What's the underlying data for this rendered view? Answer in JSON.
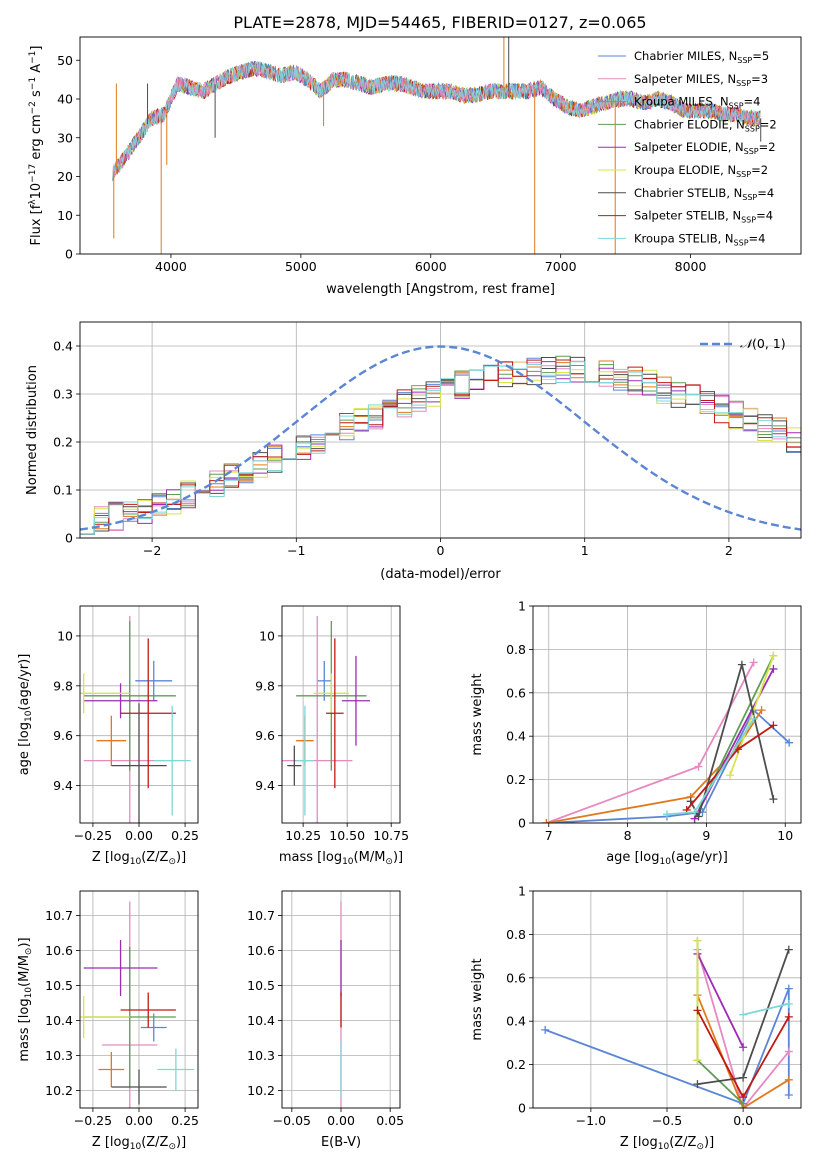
{
  "figure": {
    "title": "PLATE=2878, MJD=54465, FIBERID=0127, z=0.065"
  },
  "colors": {
    "Chabrier MILES": "#5b86d6",
    "Salpeter MILES": "#e68ac1",
    "Kroupa MILES": "#e07a1e",
    "Chabrier ELODIE": "#5f9e56",
    "Salpeter ELODIE": "#9d2bb5",
    "Kroupa ELODIE": "#d9e44a",
    "Chabrier STELIB": "#4d4d4d",
    "Salpeter STELIB": "#c01a12",
    "Kroupa STELIB": "#7fd7d9",
    "gaussian": "#5b86d6",
    "grid": "#b0b0b0"
  },
  "chart_data": [
    {
      "id": "spectrum",
      "type": "line",
      "xlabel": "wavelength [Angstrom, rest frame]",
      "ylabel_parts": [
        "Flux [f",
        "λ",
        "10",
        "−17",
        " erg cm",
        "−2",
        " s",
        "−1",
        " A",
        "−1",
        "]"
      ],
      "xlim": [
        3300,
        8850
      ],
      "ylim": [
        0,
        56
      ],
      "xticks": [
        4000,
        5000,
        6000,
        7000,
        8000
      ],
      "yticks": [
        0,
        10,
        20,
        30,
        40,
        50
      ],
      "grid": false,
      "legend_position": "upper right",
      "legend": [
        {
          "model": "Chabrier MILES",
          "label": "Chabrier MILES, N",
          "sub": "SSP",
          "suffix": "=5"
        },
        {
          "model": "Salpeter MILES",
          "label": "Salpeter MILES, N",
          "sub": "SSP",
          "suffix": "=3"
        },
        {
          "model": "Kroupa MILES",
          "label": "Kroupa MILES, N",
          "sub": "SSP",
          "suffix": "=4"
        },
        {
          "model": "Chabrier ELODIE",
          "label": "Chabrier ELODIE, N",
          "sub": "SSP",
          "suffix": "=2"
        },
        {
          "model": "Salpeter ELODIE",
          "label": "Salpeter ELODIE, N",
          "sub": "SSP",
          "suffix": "=2"
        },
        {
          "model": "Kroupa ELODIE",
          "label": "Kroupa ELODIE, N",
          "sub": "SSP",
          "suffix": "=2"
        },
        {
          "model": "Chabrier STELIB",
          "label": "Chabrier STELIB, N",
          "sub": "SSP",
          "suffix": "=4"
        },
        {
          "model": "Salpeter STELIB",
          "label": "Salpeter STELIB, N",
          "sub": "SSP",
          "suffix": "=4"
        },
        {
          "model": "Kroupa STELIB",
          "label": "Kroupa STELIB, N",
          "sub": "SSP",
          "suffix": "=4"
        }
      ],
      "continuum": {
        "x": [
          3550,
          3650,
          3750,
          3850,
          3950,
          4050,
          4150,
          4250,
          4350,
          4450,
          4550,
          4650,
          4750,
          4850,
          4950,
          5050,
          5150,
          5250,
          5350,
          5450,
          5550,
          5650,
          5750,
          5850,
          5950,
          6050,
          6150,
          6250,
          6350,
          6450,
          6550,
          6650,
          6750,
          6850,
          6950,
          7050,
          7150,
          7250,
          7350,
          7450,
          7550,
          7650,
          7750,
          7850,
          7950,
          8050,
          8150,
          8250,
          8350,
          8450,
          8500
        ],
        "y": [
          21,
          25,
          30,
          35,
          36,
          44,
          43,
          42,
          44,
          46,
          47,
          48,
          47,
          46,
          47,
          45,
          42,
          45,
          45,
          44,
          43,
          44,
          44,
          43,
          42,
          42,
          42,
          41,
          41,
          42,
          42,
          42,
          42,
          43,
          40,
          38,
          37,
          38,
          39,
          40,
          40,
          39,
          40,
          39,
          37,
          37,
          37,
          36,
          36,
          35,
          35
        ]
      },
      "features": [
        {
          "x": 3560,
          "y": 4
        },
        {
          "x": 3580,
          "y": 44
        },
        {
          "x": 3820,
          "y": 44
        },
        {
          "x": 3925,
          "y": 0
        },
        {
          "x": 3968,
          "y": 23
        },
        {
          "x": 4340,
          "y": 30
        },
        {
          "x": 5175,
          "y": 33
        },
        {
          "x": 6563,
          "y": 56
        },
        {
          "x": 6600,
          "y": 56
        },
        {
          "x": 6800,
          "y": 0
        },
        {
          "x": 7420,
          "y": 0
        },
        {
          "x": 8540,
          "y": 29
        }
      ]
    },
    {
      "id": "residuals",
      "type": "step",
      "xlabel": "(data-model)/error",
      "ylabel": "Normed distribution",
      "xlim": [
        -2.5,
        2.5
      ],
      "ylim": [
        0,
        0.45
      ],
      "xticks": [
        -2,
        -1,
        0,
        1,
        2
      ],
      "yticks": [
        0.0,
        0.1,
        0.2,
        0.3,
        0.4
      ],
      "grid": true,
      "legend_position": "upper right",
      "gaussian": {
        "label_pre": "𝒩",
        "label_post": "(0, 1)",
        "mean": 0,
        "sigma": 1,
        "style": "dashed"
      },
      "bin_width": 0.1,
      "bin_start": -2.5,
      "base_profile": [
        0.035,
        0.04,
        0.045,
        0.05,
        0.06,
        0.068,
        0.078,
        0.09,
        0.1,
        0.115,
        0.125,
        0.14,
        0.15,
        0.165,
        0.175,
        0.19,
        0.2,
        0.215,
        0.23,
        0.24,
        0.25,
        0.265,
        0.28,
        0.29,
        0.3,
        0.31,
        0.32,
        0.325,
        0.33,
        0.34,
        0.345,
        0.345,
        0.35,
        0.35,
        0.348,
        0.345,
        0.342,
        0.335,
        0.328,
        0.32,
        0.31,
        0.3,
        0.29,
        0.28,
        0.268,
        0.255,
        0.245,
        0.232,
        0.22,
        0.205,
        0.195,
        0.18,
        0.168,
        0.155,
        0.14,
        0.128,
        0.115,
        0.103,
        0.093,
        0.083,
        0.075,
        0.068,
        0.062,
        0.056,
        0.05,
        0.046,
        0.042,
        0.04,
        0.038,
        0.036,
        0.035,
        0.035,
        0.034,
        0.033,
        0.033,
        0.032,
        0.032,
        0.031,
        0.031,
        0.03
      ]
    },
    {
      "id": "age-vs-Z",
      "type": "errorbar",
      "xlabel_parts": [
        "Z [log",
        "10",
        "(Z/Z",
        "⊙",
        ")]"
      ],
      "ylabel_parts": [
        "age  [log",
        "10",
        "(age/yr)]"
      ],
      "xlim": [
        -0.32,
        0.32
      ],
      "ylim": [
        9.25,
        10.12
      ],
      "xticks": [
        -0.25,
        0.0,
        0.25
      ],
      "xticklabels": [
        "−0.25",
        "0.00",
        "0.25"
      ],
      "yticks": [
        9.4,
        9.6,
        9.8,
        10.0
      ],
      "grid": true,
      "points": [
        {
          "model": "Chabrier MILES",
          "x": 0.08,
          "y": 9.82,
          "xerr": 0.1,
          "yerr": 0.08
        },
        {
          "model": "Salpeter MILES",
          "x": -0.05,
          "y": 9.5,
          "xerr": 0.25,
          "yerr": 0.58
        },
        {
          "model": "Kroupa MILES",
          "x": -0.15,
          "y": 9.58,
          "xerr": 0.08,
          "yerr": 0.1
        },
        {
          "model": "Chabrier ELODIE",
          "x": -0.05,
          "y": 9.76,
          "xerr": 0.25,
          "yerr": 0.3
        },
        {
          "model": "Salpeter ELODIE",
          "x": -0.1,
          "y": 9.74,
          "xerr": 0.2,
          "yerr": 0.07
        },
        {
          "model": "Kroupa ELODIE",
          "x": -0.3,
          "y": 9.77,
          "xerr": 0.25,
          "yerr": 0.08
        },
        {
          "model": "Chabrier STELIB",
          "x": 0.0,
          "y": 9.48,
          "xerr": 0.15,
          "yerr": 0.25
        },
        {
          "model": "Salpeter STELIB",
          "x": 0.05,
          "y": 9.69,
          "xerr": 0.15,
          "yerr": 0.3
        },
        {
          "model": "Kroupa STELIB",
          "x": 0.18,
          "y": 9.5,
          "xerr": 0.1,
          "yerr": 0.22
        }
      ]
    },
    {
      "id": "age-vs-mass",
      "type": "errorbar",
      "xlabel_parts": [
        "mass [log",
        "10",
        "(M/M",
        "⊙",
        ")]"
      ],
      "ylabel": "",
      "xlim": [
        10.13,
        10.8
      ],
      "ylim": [
        9.25,
        10.12
      ],
      "xticks": [
        10.25,
        10.5,
        10.75
      ],
      "xticklabels": [
        "10.25",
        "10.50",
        "10.75"
      ],
      "yticks": [
        9.4,
        9.6,
        9.8,
        10.0
      ],
      "grid": true,
      "points": [
        {
          "model": "Chabrier MILES",
          "x": 10.37,
          "y": 9.82,
          "xerr": 0.04,
          "yerr": 0.08
        },
        {
          "model": "Salpeter MILES",
          "x": 10.33,
          "y": 9.5,
          "xerr": 0.2,
          "yerr": 0.58
        },
        {
          "model": "Kroupa MILES",
          "x": 10.26,
          "y": 9.58,
          "xerr": 0.05,
          "yerr": 0.1
        },
        {
          "model": "Chabrier ELODIE",
          "x": 10.41,
          "y": 9.76,
          "xerr": 0.2,
          "yerr": 0.3
        },
        {
          "model": "Salpeter ELODIE",
          "x": 10.55,
          "y": 9.74,
          "xerr": 0.08,
          "yerr": 0.18
        },
        {
          "model": "Kroupa ELODIE",
          "x": 10.41,
          "y": 9.77,
          "xerr": 0.1,
          "yerr": 0.08
        },
        {
          "model": "Chabrier STELIB",
          "x": 10.2,
          "y": 9.48,
          "xerr": 0.04,
          "yerr": 0.08
        },
        {
          "model": "Salpeter STELIB",
          "x": 10.43,
          "y": 9.69,
          "xerr": 0.05,
          "yerr": 0.3
        },
        {
          "model": "Kroupa STELIB",
          "x": 10.26,
          "y": 9.5,
          "xerr": 0.05,
          "yerr": 0.22
        }
      ]
    },
    {
      "id": "weight-vs-age",
      "type": "line",
      "xlabel_parts": [
        "age  [log",
        "10",
        "(age/yr)]"
      ],
      "ylabel": "mass weight",
      "xlim": [
        6.8,
        10.2
      ],
      "ylim": [
        0,
        1
      ],
      "xticks": [
        7,
        8,
        9,
        10
      ],
      "yticks": [
        0.0,
        0.2,
        0.4,
        0.6,
        0.8,
        1.0
      ],
      "grid": true,
      "series": [
        {
          "model": "Chabrier MILES",
          "x": [
            6.97,
            8.5,
            8.95,
            9.6,
            10.05
          ],
          "y": [
            0.0,
            0.03,
            0.05,
            0.52,
            0.37
          ]
        },
        {
          "model": "Salpeter MILES",
          "x": [
            6.97,
            8.9,
            9.6
          ],
          "y": [
            0.0,
            0.26,
            0.74
          ]
        },
        {
          "model": "Kroupa MILES",
          "x": [
            6.97,
            8.8,
            9.4,
            9.7
          ],
          "y": [
            0.0,
            0.12,
            0.35,
            0.52
          ]
        },
        {
          "model": "Chabrier ELODIE",
          "x": [
            8.85,
            9.85
          ],
          "y": [
            0.02,
            0.77
          ]
        },
        {
          "model": "Salpeter ELODIE",
          "x": [
            8.85,
            9.85
          ],
          "y": [
            0.02,
            0.71
          ]
        },
        {
          "model": "Kroupa ELODIE",
          "x": [
            9.3,
            9.85
          ],
          "y": [
            0.22,
            0.77
          ]
        },
        {
          "model": "Chabrier STELIB",
          "x": [
            8.8,
            8.9,
            9.45,
            9.85
          ],
          "y": [
            0.1,
            0.03,
            0.73,
            0.11
          ]
        },
        {
          "model": "Salpeter STELIB",
          "x": [
            8.75,
            9.4,
            9.85
          ],
          "y": [
            0.06,
            0.34,
            0.45
          ]
        },
        {
          "model": "Kroupa STELIB",
          "x": [
            8.5,
            8.85,
            9.6
          ],
          "y": [
            0.04,
            0.05,
            0.48
          ]
        }
      ]
    },
    {
      "id": "mass-vs-Z",
      "type": "errorbar",
      "xlabel_parts": [
        "Z [log",
        "10",
        "(Z/Z",
        "⊙",
        ")]"
      ],
      "ylabel_parts": [
        "mass [log",
        "10",
        "(M/M",
        "⊙",
        ")]"
      ],
      "xlim": [
        -0.32,
        0.32
      ],
      "ylim": [
        10.15,
        10.77
      ],
      "xticks": [
        -0.25,
        0.0,
        0.25
      ],
      "xticklabels": [
        "−0.25",
        "0.00",
        "0.25"
      ],
      "yticks": [
        10.2,
        10.3,
        10.4,
        10.5,
        10.6,
        10.7
      ],
      "grid": true,
      "points": [
        {
          "model": "Chabrier MILES",
          "x": 0.08,
          "y": 10.38,
          "xerr": 0.07,
          "yerr": 0.04
        },
        {
          "model": "Salpeter MILES",
          "x": -0.05,
          "y": 10.33,
          "xerr": 0.15,
          "yerr": 0.41
        },
        {
          "model": "Kroupa MILES",
          "x": -0.15,
          "y": 10.26,
          "xerr": 0.07,
          "yerr": 0.05
        },
        {
          "model": "Chabrier ELODIE",
          "x": -0.05,
          "y": 10.41,
          "xerr": 0.25,
          "yerr": 0.2
        },
        {
          "model": "Salpeter ELODIE",
          "x": -0.1,
          "y": 10.55,
          "xerr": 0.2,
          "yerr": 0.08
        },
        {
          "model": "Kroupa ELODIE",
          "x": -0.3,
          "y": 10.41,
          "xerr": 0.25,
          "yerr": 0.06
        },
        {
          "model": "Chabrier STELIB",
          "x": 0.0,
          "y": 10.21,
          "xerr": 0.15,
          "yerr": 0.05
        },
        {
          "model": "Salpeter STELIB",
          "x": 0.05,
          "y": 10.43,
          "xerr": 0.15,
          "yerr": 0.05
        },
        {
          "model": "Kroupa STELIB",
          "x": 0.2,
          "y": 10.26,
          "xerr": 0.1,
          "yerr": 0.06
        }
      ]
    },
    {
      "id": "mass-vs-ebv",
      "type": "errorbar",
      "xlabel": "E(B-V)",
      "ylabel": "",
      "xlim": [
        -0.06,
        0.06
      ],
      "ylim": [
        10.15,
        10.77
      ],
      "xticks": [
        -0.05,
        0.0,
        0.05
      ],
      "xticklabels": [
        "−0.05",
        "0.00",
        "0.05"
      ],
      "yticks": [
        10.2,
        10.3,
        10.4,
        10.5,
        10.6,
        10.7
      ],
      "grid": true,
      "points": [
        {
          "model": "Salpeter MILES",
          "x": 0.0,
          "y": 10.33,
          "xerr": 0,
          "yerr": 0.41
        },
        {
          "model": "Salpeter ELODIE",
          "x": 0.0,
          "y": 10.55,
          "xerr": 0,
          "yerr": 0.08
        },
        {
          "model": "Salpeter STELIB",
          "x": 0.0,
          "y": 10.43,
          "xerr": 0,
          "yerr": 0.05
        },
        {
          "model": "Kroupa STELIB",
          "x": 0.0,
          "y": 10.26,
          "xerr": 0,
          "yerr": 0.08
        }
      ]
    },
    {
      "id": "weight-vs-Z",
      "type": "line",
      "xlabel_parts": [
        "Z [log",
        "10",
        "(Z/Z",
        "⊙",
        ")]"
      ],
      "ylabel": "mass weight",
      "xlim": [
        -1.38,
        0.38
      ],
      "ylim": [
        0,
        1
      ],
      "xticks": [
        -1.0,
        -0.5,
        0.0
      ],
      "xticklabels": [
        "−1.0",
        "−0.5",
        "0.0"
      ],
      "yticks": [
        0.0,
        0.2,
        0.4,
        0.6,
        0.8,
        1.0
      ],
      "grid": true,
      "series": [
        {
          "model": "Chabrier MILES",
          "x": [
            -1.3,
            0.0,
            0.3,
            0.3
          ],
          "y": [
            0.36,
            0.02,
            0.55,
            0.06
          ]
        },
        {
          "model": "Salpeter MILES",
          "x": [
            -0.3,
            0.0,
            0.3
          ],
          "y": [
            0.73,
            0.0,
            0.26
          ]
        },
        {
          "model": "Kroupa MILES",
          "x": [
            -0.3,
            0.0,
            0.3
          ],
          "y": [
            0.52,
            0.0,
            0.13
          ]
        },
        {
          "model": "Chabrier ELODIE",
          "x": [
            -0.3,
            -0.3,
            0.0
          ],
          "y": [
            0.77,
            0.22,
            0.02
          ]
        },
        {
          "model": "Salpeter ELODIE",
          "x": [
            -0.3,
            0.0
          ],
          "y": [
            0.71,
            0.28
          ]
        },
        {
          "model": "Kroupa ELODIE",
          "x": [
            -0.3,
            -0.3
          ],
          "y": [
            0.77,
            0.22
          ]
        },
        {
          "model": "Chabrier STELIB",
          "x": [
            -0.3,
            0.0,
            0.3
          ],
          "y": [
            0.11,
            0.14,
            0.73
          ]
        },
        {
          "model": "Salpeter STELIB",
          "x": [
            -0.3,
            0.0,
            0.3
          ],
          "y": [
            0.45,
            0.05,
            0.42
          ]
        },
        {
          "model": "Kroupa STELIB",
          "x": [
            0.0,
            0.3
          ],
          "y": [
            0.43,
            0.48
          ]
        }
      ]
    }
  ]
}
